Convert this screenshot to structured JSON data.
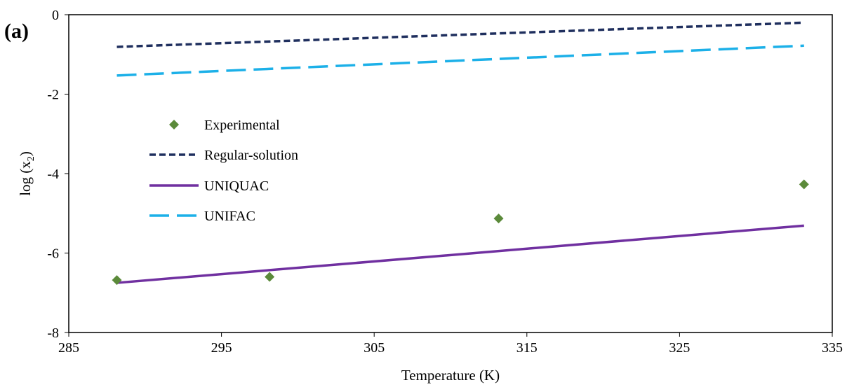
{
  "panel_label": "(a)",
  "chart_data": {
    "type": "line",
    "xlabel": "Temperature (K)",
    "ylabel": "log (x",
    "ylabel_subscript": "2",
    "ylabel_close": ")",
    "xlim": [
      285,
      335
    ],
    "ylim": [
      -8,
      0
    ],
    "xticks": [
      285,
      295,
      305,
      315,
      325,
      335
    ],
    "yticks": [
      0,
      -2,
      -4,
      -6,
      -8
    ],
    "grid": false,
    "legend_position": "left",
    "series": [
      {
        "name": "Experimental",
        "kind": "scatter",
        "color": "#5b8a3a",
        "marker": "diamond",
        "x": [
          288.15,
          298.15,
          313.15,
          333.15
        ],
        "y": [
          -6.68,
          -6.6,
          -5.13,
          -4.27
        ]
      },
      {
        "name": "Regular-solution",
        "kind": "line",
        "color": "#1f2f5e",
        "dash": "short",
        "x": [
          288.15,
          333.15
        ],
        "y": [
          -0.81,
          -0.2
        ]
      },
      {
        "name": "UNIQUAC",
        "kind": "line",
        "color": "#7030a0",
        "dash": "solid",
        "x": [
          288.15,
          333.15
        ],
        "y": [
          -6.75,
          -5.31
        ]
      },
      {
        "name": "UNIFAC",
        "kind": "line",
        "color": "#1cb0e8",
        "dash": "long",
        "x": [
          288.15,
          333.15
        ],
        "y": [
          -1.53,
          -0.78
        ]
      }
    ]
  }
}
